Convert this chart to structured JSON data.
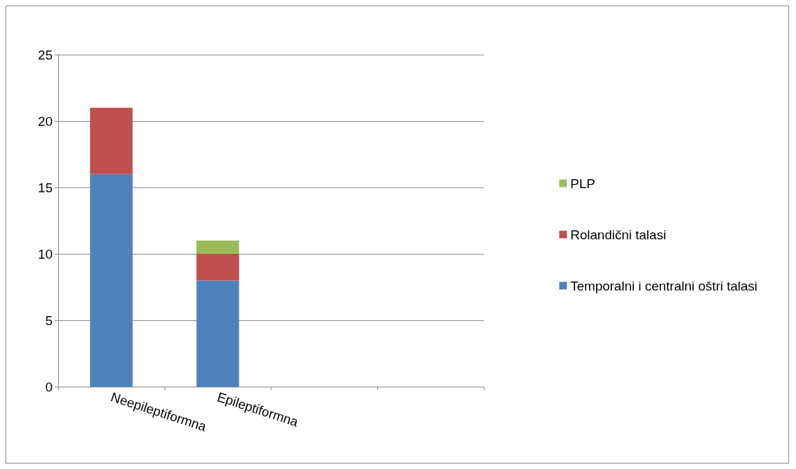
{
  "chart_data": {
    "type": "bar",
    "stacked": true,
    "categories": [
      "Neepileptiformna",
      "Epileptiformna",
      null,
      null
    ],
    "series": [
      {
        "name": "Temporalni i centralni oštri talasi",
        "color": "#4f81bd",
        "values": [
          16,
          8,
          null,
          null
        ]
      },
      {
        "name": "Rolandični talasi",
        "color": "#c0504d",
        "values": [
          5,
          2,
          null,
          null
        ]
      },
      {
        "name": "PLP",
        "color": "#9bbb59",
        "values": [
          0,
          1,
          null,
          null
        ]
      }
    ],
    "ylim": [
      0,
      25
    ],
    "yticks": [
      0,
      5,
      10,
      15,
      20,
      25
    ],
    "grid": "y",
    "legend": "right"
  }
}
